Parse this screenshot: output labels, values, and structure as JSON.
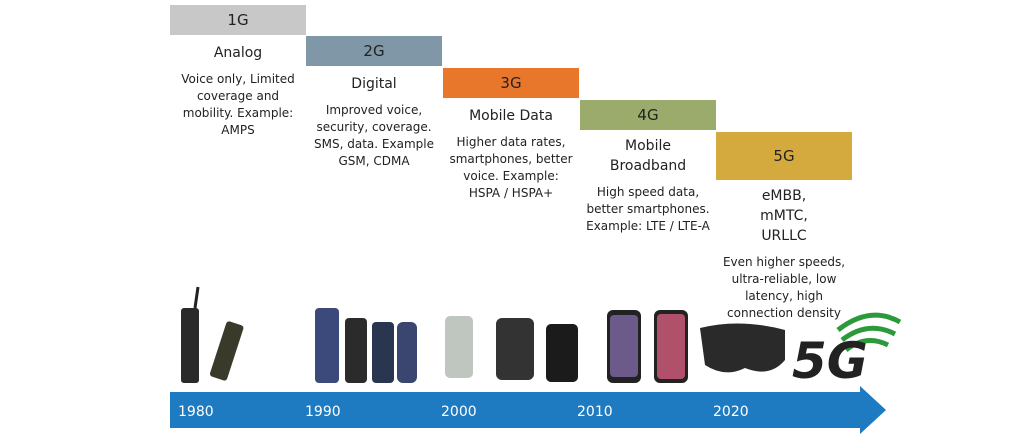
{
  "generations": [
    {
      "label": "1G",
      "title": "Analog",
      "description": "Voice only, Limited coverage and mobility. Example: AMPS"
    },
    {
      "label": "2G",
      "title": "Digital",
      "description": "Improved voice, security, coverage. SMS, data. Example GSM, CDMA"
    },
    {
      "label": "3G",
      "title": "Mobile Data",
      "description": "Higher data rates, smartphones, better voice. Example: HSPA / HSPA+"
    },
    {
      "label": "4G",
      "title": "Mobile Broadband",
      "description": "High speed data, better smartphones. Example: LTE / LTE-A"
    },
    {
      "label": "5G",
      "title": "eMBB, mMTC, URLLC",
      "description": "Even higher speeds, ultra-reliable, low latency, high connection density"
    }
  ],
  "timeline": {
    "years": [
      "1980",
      "1990",
      "2000",
      "2010",
      "2020"
    ]
  },
  "logo_text": "5G"
}
